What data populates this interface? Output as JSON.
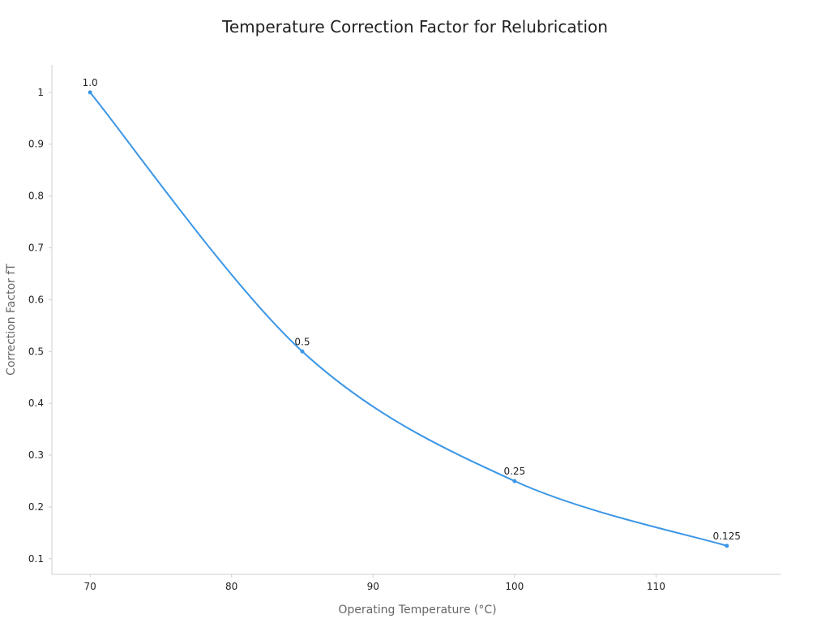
{
  "chart_data": {
    "type": "line",
    "title": "Temperature Correction Factor for Relubrication",
    "xlabel": "Operating Temperature (°C)",
    "ylabel": "Correction Factor fT",
    "x": [
      70,
      85,
      100,
      115
    ],
    "series": [
      {
        "values": [
          1.0,
          0.5,
          0.25,
          0.125
        ],
        "labels": [
          "1.0",
          "0.5",
          "0.25",
          "0.125"
        ],
        "color": "#3b96e6"
      }
    ],
    "xlim": [
      67.3,
      118.8
    ],
    "ylim": [
      0.07,
      1.053
    ],
    "xticks": [
      70,
      80,
      90,
      100,
      110
    ],
    "xtick_labels": [
      "70",
      "80",
      "90",
      "100",
      "110"
    ],
    "yticks": [
      0.1,
      0.2,
      0.3,
      0.4,
      0.5,
      0.6,
      0.7,
      0.8,
      0.9,
      1.0
    ],
    "ytick_labels": [
      "0.1",
      "0.2",
      "0.3",
      "0.4",
      "0.5",
      "0.6",
      "0.7",
      "0.8",
      "0.9",
      "1"
    ],
    "grid": false,
    "legend": "none",
    "curve": "smooth exponential decay"
  }
}
